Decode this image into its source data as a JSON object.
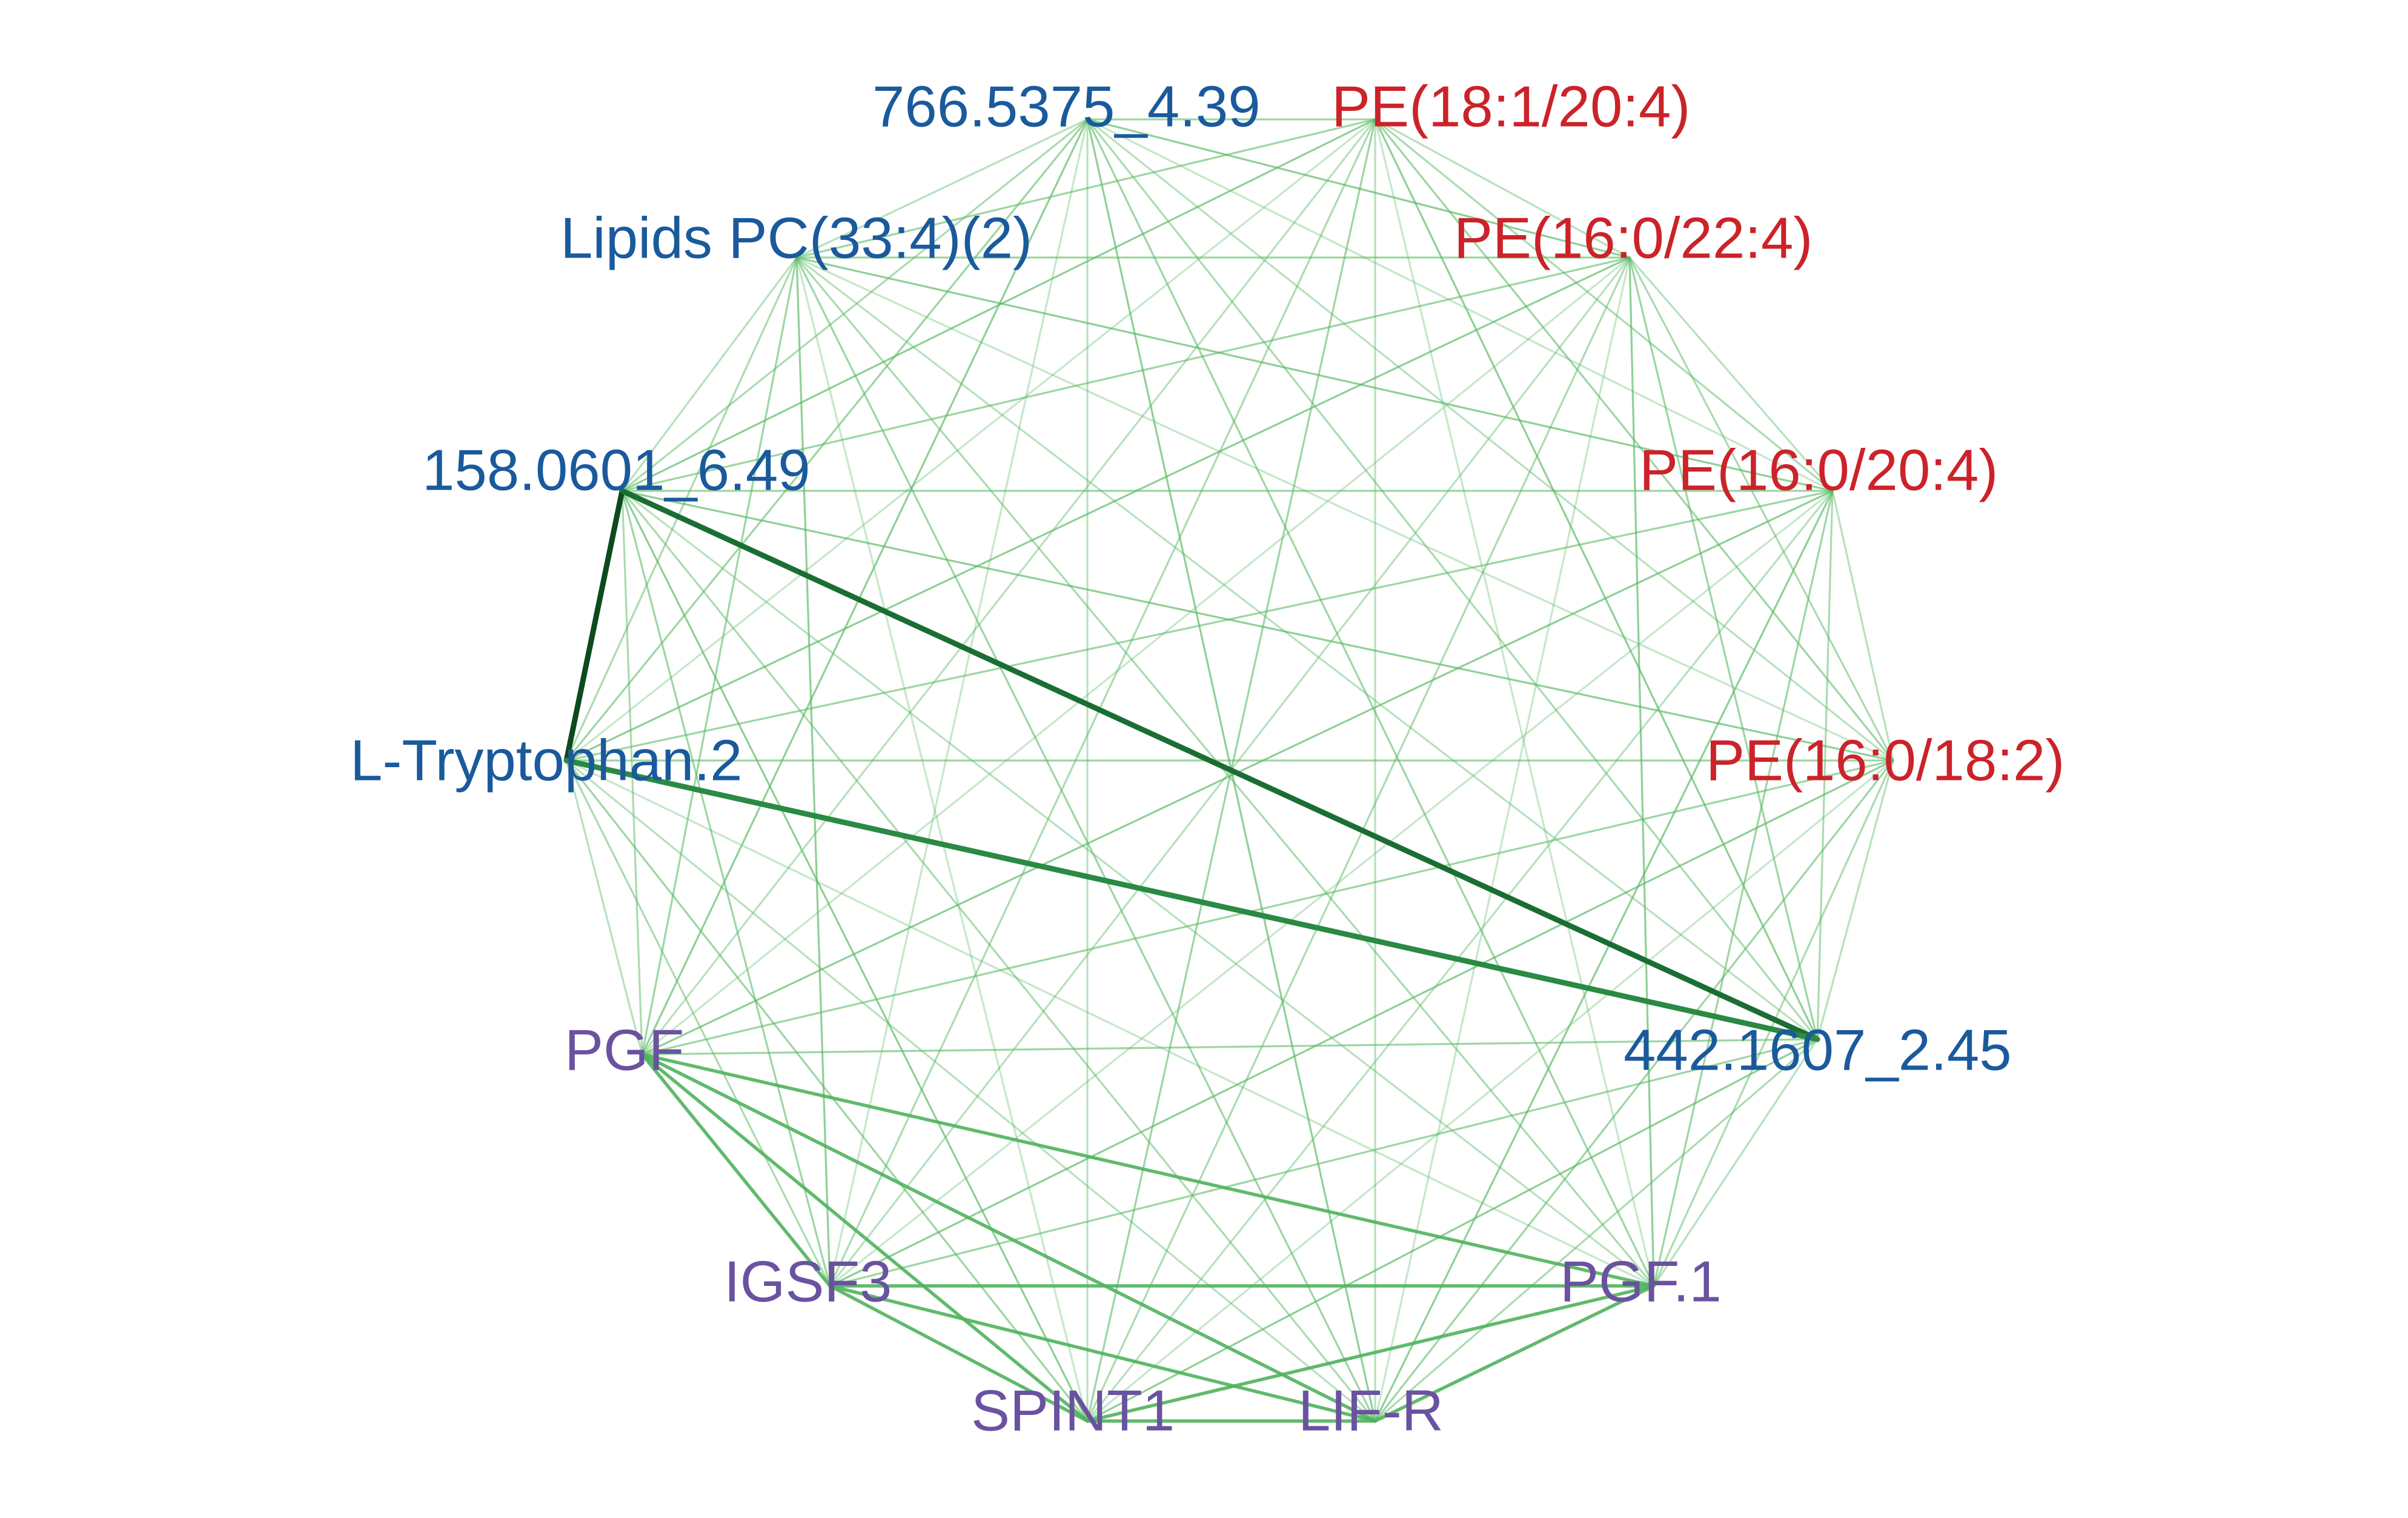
{
  "diagram": {
    "type": "network",
    "layout": "circle",
    "edge_color": "#2e8b3c",
    "group_colors": {
      "metabolite": "#1a5a9c",
      "lipid_pe": "#cc2229",
      "protein": "#6a52a0"
    },
    "nodes": [
      {
        "id": "n1",
        "label": "766.5375_4.39",
        "group": "metabolite"
      },
      {
        "id": "n2",
        "label": "PE(18:1/20:4)",
        "group": "lipid_pe"
      },
      {
        "id": "n3",
        "label": "Lipids PC(33:4)(2)",
        "group": "metabolite"
      },
      {
        "id": "n4",
        "label": "PE(16:0/22:4)",
        "group": "lipid_pe"
      },
      {
        "id": "n5",
        "label": "158.0601_6.49",
        "group": "metabolite"
      },
      {
        "id": "n6",
        "label": "PE(16:0/20:4)",
        "group": "lipid_pe"
      },
      {
        "id": "n7",
        "label": "L-Tryptophan.2",
        "group": "metabolite"
      },
      {
        "id": "n8",
        "label": "PE(16:0/18:2)",
        "group": "lipid_pe"
      },
      {
        "id": "n9",
        "label": "PGF",
        "group": "protein"
      },
      {
        "id": "n10",
        "label": "442.1607_2.45",
        "group": "metabolite"
      },
      {
        "id": "n11",
        "label": "IGSF3",
        "group": "protein"
      },
      {
        "id": "n12",
        "label": "PGF.1",
        "group": "protein"
      },
      {
        "id": "n13",
        "label": "SPINT1",
        "group": "protein"
      },
      {
        "id": "n14",
        "label": "LIF-R",
        "group": "protein"
      }
    ],
    "strong_edges": [
      {
        "source": "n5",
        "target": "n7",
        "weight": 1.0
      },
      {
        "source": "n5",
        "target": "n10",
        "weight": 0.85
      },
      {
        "source": "n7",
        "target": "n10",
        "weight": 0.75
      }
    ],
    "protein_edges": [
      {
        "source": "n9",
        "target": "n12",
        "weight": 0.45
      },
      {
        "source": "n9",
        "target": "n13",
        "weight": 0.45
      },
      {
        "source": "n9",
        "target": "n14",
        "weight": 0.45
      },
      {
        "source": "n9",
        "target": "n11",
        "weight": 0.45
      },
      {
        "source": "n11",
        "target": "n13",
        "weight": 0.45
      },
      {
        "source": "n11",
        "target": "n14",
        "weight": 0.45
      },
      {
        "source": "n11",
        "target": "n12",
        "weight": 0.45
      },
      {
        "source": "n13",
        "target": "n14",
        "weight": 0.45
      },
      {
        "source": "n13",
        "target": "n12",
        "weight": 0.45
      },
      {
        "source": "n14",
        "target": "n12",
        "weight": 0.45
      }
    ],
    "background_edge_weight": 0.2
  }
}
